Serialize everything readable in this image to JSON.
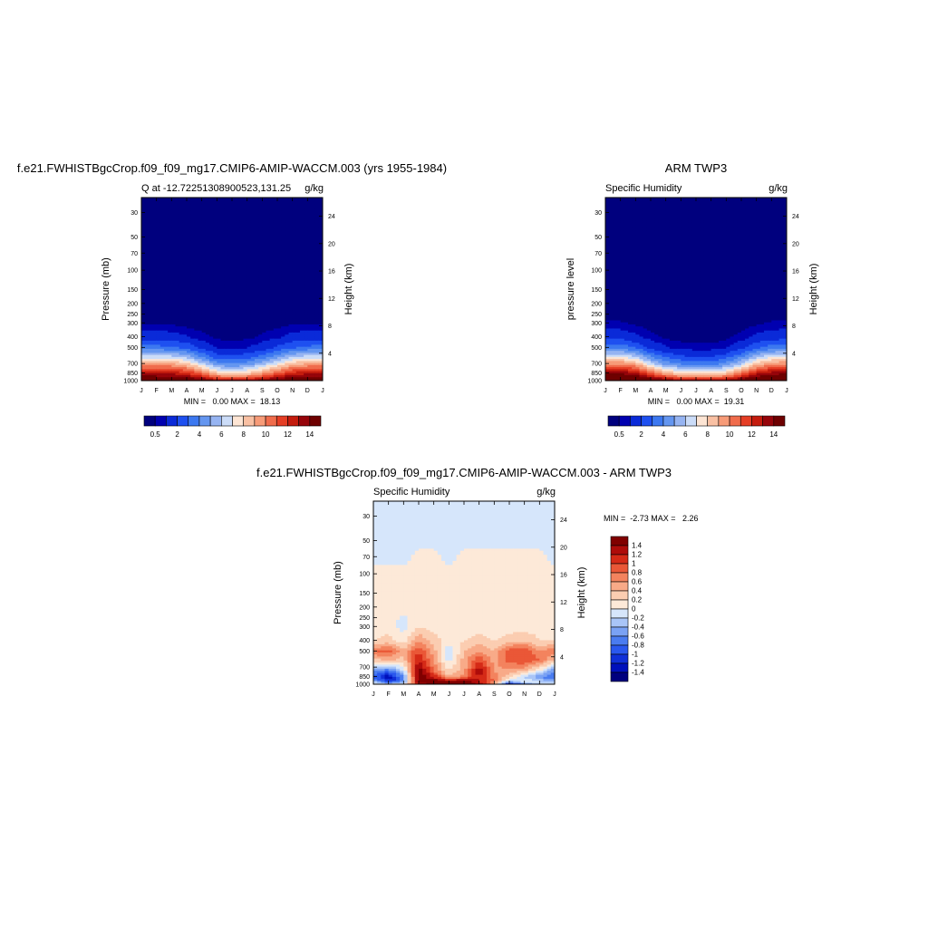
{
  "chart_data": [
    {
      "type": "heatmap",
      "main_title": "f.e21.FWHISTBgcCrop.f09_f09_mg17.CMIP6-AMIP-WACCM.003 (yrs 1955-1984)",
      "title": "Q at -12.72251308900523,131.25",
      "units": "g/kg",
      "ylabel": "Pressure (mb)",
      "y2label": "Height (km)",
      "x_ticks": [
        "J",
        "F",
        "M",
        "A",
        "M",
        "J",
        "J",
        "A",
        "S",
        "O",
        "N",
        "D",
        "J"
      ],
      "y_ticks": [
        30,
        50,
        70,
        100,
        150,
        200,
        250,
        300,
        400,
        500,
        700,
        850,
        1000
      ],
      "y2_ticks": [
        24,
        20,
        16,
        12,
        8,
        4
      ],
      "y_scale": "log",
      "ylim": [
        1000,
        22
      ],
      "minmax_text": "MIN =   0.00 MAX =  18.13",
      "colorbar": {
        "orientation": "horizontal",
        "tick_labels": [
          "0.5",
          "2",
          "4",
          "6",
          "8",
          "10",
          "12",
          "14"
        ],
        "levels": [
          0.5,
          1,
          2,
          3,
          4,
          5,
          6,
          7,
          8,
          9,
          10,
          11,
          12,
          13,
          14
        ]
      },
      "fields": {
        "month_index": [
          0,
          1,
          2,
          3,
          4,
          5,
          6,
          7,
          8,
          9,
          10,
          11,
          12
        ],
        "level_pressure_mb": [
          1000,
          925,
          850,
          700,
          600,
          500,
          400,
          300
        ],
        "specific_humidity_gkg": [
          [
            17.5,
            14.5,
            13.0,
            9.5,
            6.5,
            3.5,
            1.5,
            0.5
          ],
          [
            17.5,
            14.5,
            13.0,
            9.5,
            6.5,
            3.5,
            1.5,
            0.5
          ],
          [
            17.4,
            14.4,
            12.9,
            9.3,
            6.3,
            3.3,
            1.4,
            0.4
          ],
          [
            17.0,
            14.0,
            12.2,
            8.5,
            5.5,
            2.8,
            1.1,
            0.3
          ],
          [
            16.0,
            12.6,
            10.5,
            6.5,
            4.0,
            1.8,
            0.7,
            0.2
          ],
          [
            14.5,
            11.0,
            8.5,
            4.5,
            2.5,
            1.0,
            0.4,
            0.1
          ],
          [
            14.0,
            10.5,
            8.0,
            4.0,
            2.2,
            0.8,
            0.3,
            0.1
          ],
          [
            14.2,
            10.8,
            8.3,
            4.5,
            2.6,
            1.0,
            0.4,
            0.1
          ],
          [
            15.0,
            11.8,
            9.5,
            5.8,
            3.4,
            1.5,
            0.6,
            0.2
          ],
          [
            16.2,
            13.0,
            11.0,
            7.2,
            4.6,
            2.2,
            0.9,
            0.3
          ],
          [
            17.0,
            14.0,
            12.4,
            8.6,
            5.8,
            3.0,
            1.3,
            0.4
          ],
          [
            17.4,
            14.4,
            12.9,
            9.3,
            6.4,
            3.4,
            1.5,
            0.5
          ],
          [
            17.5,
            14.5,
            13.0,
            9.5,
            6.5,
            3.5,
            1.5,
            0.5
          ]
        ]
      }
    },
    {
      "type": "heatmap",
      "main_title": "ARM TWP3",
      "title": "Specific Humidity",
      "units": "g/kg",
      "ylabel": "pressure level",
      "y2label": "Height (km)",
      "x_ticks": [
        "J",
        "F",
        "M",
        "A",
        "M",
        "J",
        "J",
        "A",
        "S",
        "O",
        "N",
        "D",
        "J"
      ],
      "y_ticks": [
        30,
        50,
        70,
        100,
        150,
        200,
        250,
        300,
        400,
        500,
        700,
        850,
        1000
      ],
      "y2_ticks": [
        24,
        20,
        16,
        12,
        8,
        4
      ],
      "y_scale": "log",
      "ylim": [
        1000,
        22
      ],
      "minmax_text": "MIN =   0.00 MAX =  19.31",
      "colorbar": {
        "orientation": "horizontal",
        "tick_labels": [
          "0.5",
          "2",
          "4",
          "6",
          "8",
          "10",
          "12",
          "14"
        ],
        "levels": [
          0.5,
          1,
          2,
          3,
          4,
          5,
          6,
          7,
          8,
          9,
          10,
          11,
          12,
          13,
          14
        ]
      },
      "fields": {
        "month_index": [
          0,
          1,
          2,
          3,
          4,
          5,
          6,
          7,
          8,
          9,
          10,
          11,
          12
        ],
        "level_pressure_mb": [
          1000,
          925,
          850,
          700,
          600,
          500,
          400,
          300
        ],
        "specific_humidity_gkg": [
          [
            18.5,
            15.5,
            13.8,
            10.0,
            7.0,
            3.8,
            1.6,
            0.6
          ],
          [
            18.5,
            15.5,
            13.8,
            10.0,
            7.0,
            3.8,
            1.6,
            0.6
          ],
          [
            18.3,
            15.2,
            13.2,
            9.2,
            6.2,
            3.0,
            1.2,
            0.4
          ],
          [
            17.0,
            13.5,
            11.0,
            6.6,
            4.0,
            1.8,
            0.7,
            0.2
          ],
          [
            15.5,
            11.8,
            9.0,
            4.8,
            2.8,
            1.1,
            0.4,
            0.1
          ],
          [
            14.5,
            10.8,
            8.0,
            4.0,
            2.2,
            0.8,
            0.3,
            0.1
          ],
          [
            14.0,
            10.4,
            7.6,
            3.6,
            2.0,
            0.7,
            0.3,
            0.1
          ],
          [
            14.0,
            10.4,
            7.6,
            3.6,
            2.0,
            0.7,
            0.2,
            0.1
          ],
          [
            14.6,
            11.2,
            8.5,
            4.5,
            2.6,
            1.0,
            0.4,
            0.1
          ],
          [
            16.0,
            12.8,
            10.5,
            6.2,
            3.8,
            1.7,
            0.7,
            0.2
          ],
          [
            17.5,
            14.5,
            12.6,
            8.6,
            5.8,
            2.9,
            1.2,
            0.4
          ],
          [
            18.3,
            15.3,
            13.6,
            9.8,
            6.8,
            3.6,
            1.5,
            0.6
          ],
          [
            18.5,
            15.5,
            13.8,
            10.0,
            7.0,
            3.8,
            1.6,
            0.6
          ]
        ]
      }
    },
    {
      "type": "heatmap",
      "main_title": "f.e21.FWHISTBgcCrop.f09_f09_mg17.CMIP6-AMIP-WACCM.003 - ARM TWP3",
      "title": "Specific Humidity",
      "units": "g/kg",
      "ylabel": "Pressure (mb)",
      "y2label": "Height (km)",
      "x_ticks": [
        "J",
        "F",
        "M",
        "A",
        "M",
        "J",
        "J",
        "A",
        "S",
        "O",
        "N",
        "D",
        "J"
      ],
      "y_ticks": [
        30,
        50,
        70,
        100,
        150,
        200,
        250,
        300,
        400,
        500,
        700,
        850,
        1000
      ],
      "y2_ticks": [
        24,
        20,
        16,
        12,
        8,
        4
      ],
      "y_scale": "log",
      "ylim": [
        1000,
        22
      ],
      "minmax_text": "MIN =  -2.73 MAX =   2.26",
      "colorbar": {
        "orientation": "vertical",
        "tick_labels": [
          "1.4",
          "1.2",
          "1",
          "0.8",
          "0.6",
          "0.4",
          "0.2",
          "0",
          "-0.2",
          "-0.4",
          "-0.6",
          "-0.8",
          "-1",
          "-1.2",
          "-1.4"
        ],
        "levels": [
          -1.4,
          -1.2,
          -1.0,
          -0.8,
          -0.6,
          -0.4,
          -0.2,
          0,
          0.2,
          0.4,
          0.6,
          0.8,
          1.0,
          1.2,
          1.4
        ]
      },
      "fields": {
        "month_index": [
          0,
          1,
          2,
          3,
          4,
          5,
          6,
          7,
          8,
          9,
          10,
          11,
          12
        ],
        "level_pressure_mb": [
          1000,
          925,
          850,
          750,
          600,
          500,
          400,
          300,
          200,
          100,
          70,
          50,
          22
        ],
        "dq_gkg": [
          [
            0.1,
            -0.4,
            -0.8,
            -0.6,
            0.3,
            0.8,
            0.2,
            0.1,
            0.05,
            0.05,
            -0.05,
            -0.05,
            -0.05
          ],
          [
            0.1,
            -1.2,
            -1.4,
            -0.8,
            0.4,
            0.9,
            0.3,
            0.1,
            0.05,
            0.05,
            -0.05,
            -0.05,
            -0.05
          ],
          [
            0.2,
            -0.6,
            -0.6,
            -0.2,
            0.3,
            0.5,
            0.1,
            -0.1,
            0.05,
            0.05,
            -0.05,
            -0.05,
            -0.05
          ],
          [
            1.0,
            1.6,
            1.6,
            1.6,
            1.2,
            1.0,
            0.6,
            0.2,
            0.05,
            0.05,
            0.05,
            -0.05,
            -0.05
          ],
          [
            1.6,
            1.6,
            1.2,
            0.8,
            0.6,
            0.5,
            0.3,
            0.1,
            0.05,
            0.05,
            0.05,
            -0.05,
            -0.05
          ],
          [
            1.6,
            1.5,
            0.4,
            0.2,
            -0.1,
            -0.2,
            0.1,
            0.1,
            0.05,
            0.05,
            -0.05,
            -0.05,
            -0.05
          ],
          [
            1.6,
            1.5,
            0.8,
            0.5,
            0.5,
            0.4,
            0.2,
            0.1,
            0.05,
            0.05,
            0.05,
            -0.05,
            -0.05
          ],
          [
            1.4,
            1.2,
            1.2,
            1.4,
            1.0,
            0.6,
            0.3,
            0.1,
            0.05,
            0.05,
            0.05,
            -0.05,
            -0.05
          ],
          [
            0.4,
            0.8,
            0.7,
            0.6,
            0.5,
            0.4,
            0.2,
            0.1,
            0.05,
            0.05,
            0.05,
            -0.05,
            -0.05
          ],
          [
            -1.6,
            -0.2,
            0.2,
            0.5,
            0.9,
            1.0,
            0.3,
            0.1,
            0.05,
            0.05,
            0.05,
            -0.05,
            -0.05
          ],
          [
            -0.8,
            0.0,
            -0.2,
            0.4,
            1.0,
            1.0,
            0.4,
            0.1,
            0.05,
            0.05,
            0.05,
            -0.05,
            -0.05
          ],
          [
            -0.2,
            -0.2,
            -0.6,
            0.0,
            0.8,
            0.6,
            0.2,
            0.1,
            0.05,
            0.05,
            0.05,
            -0.05,
            -0.05
          ],
          [
            0.1,
            -0.4,
            -0.8,
            -0.6,
            0.3,
            0.8,
            0.2,
            0.1,
            0.05,
            0.05,
            -0.05,
            -0.05,
            -0.05
          ]
        ]
      }
    }
  ]
}
